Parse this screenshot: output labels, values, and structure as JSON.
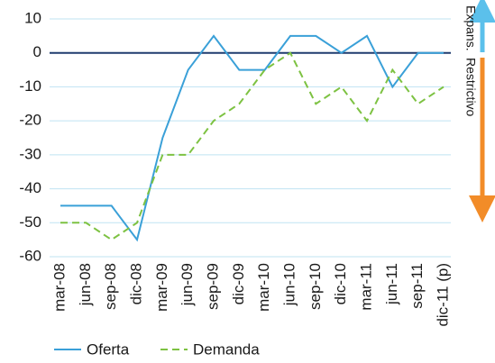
{
  "chart_data": {
    "type": "line",
    "categories": [
      "mar-08",
      "jun-08",
      "sep-08",
      "dic-08",
      "mar-09",
      "jun-09",
      "sep-09",
      "dic-09",
      "mar-10",
      "jun-10",
      "sep-10",
      "dic-10",
      "mar-11",
      "jun-11",
      "sep-11",
      "dic-11 (p)"
    ],
    "series": [
      {
        "name": "Oferta",
        "color": "#3aa0d8",
        "values": [
          -45,
          -45,
          -45,
          -55,
          -25,
          -5,
          5,
          -5,
          -5,
          5,
          5,
          0,
          5,
          -10,
          0,
          0
        ]
      },
      {
        "name": "Demanda",
        "color": "#7dc242",
        "values": [
          -50,
          -50,
          -55,
          -50,
          -30,
          -30,
          -20,
          -15,
          -5,
          0,
          -15,
          -10,
          -20,
          -5,
          -15,
          -10
        ]
      }
    ],
    "ylim": [
      -60,
      10
    ],
    "yticks": [
      -60,
      -50,
      -40,
      -30,
      -20,
      -10,
      0,
      10
    ],
    "grid": true,
    "annotations": [
      "Expans.",
      "Restrictivo"
    ]
  }
}
